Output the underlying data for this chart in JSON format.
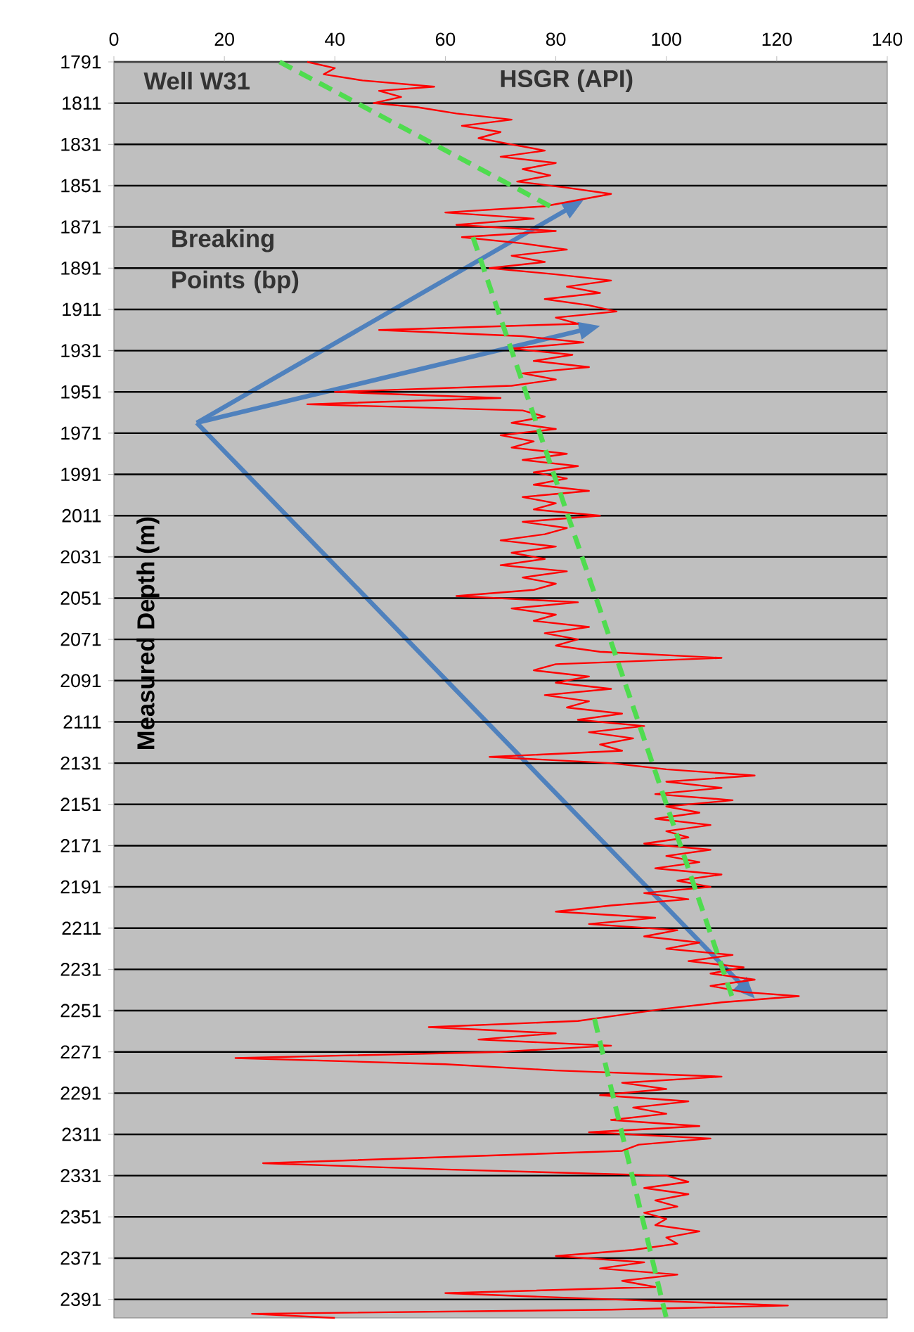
{
  "chart_data": {
    "type": "line",
    "xlabel": "HSGR  (API)",
    "ylabel": "Measured Depth (m)",
    "annotations": [
      "Well W31",
      "Breaking Points (bp)"
    ],
    "xlim": [
      0,
      140
    ],
    "xticks": [
      0,
      20,
      40,
      60,
      80,
      100,
      120,
      140
    ],
    "ylim": [
      2400,
      1791
    ],
    "yticks": [
      1791,
      1811,
      1831,
      1851,
      1871,
      1891,
      1911,
      1931,
      1951,
      1971,
      1991,
      2011,
      2031,
      2051,
      2071,
      2091,
      2111,
      2131,
      2151,
      2171,
      2191,
      2211,
      2231,
      2251,
      2271,
      2291,
      2311,
      2331,
      2351,
      2371,
      2391
    ],
    "grid": "y",
    "line_style": "solid",
    "series": [
      {
        "color": "#ff0000",
        "x": [
          35,
          40,
          38,
          45,
          58,
          48,
          52,
          47,
          55,
          62,
          72,
          63,
          70,
          66,
          72,
          78,
          70,
          80,
          74,
          79,
          73,
          82,
          90,
          84,
          78,
          60,
          76,
          62,
          80,
          63,
          74,
          82,
          72,
          78,
          68,
          80,
          90,
          82,
          88,
          78,
          86,
          91,
          80,
          84,
          48,
          74,
          85,
          72,
          83,
          76,
          86,
          74,
          80,
          72,
          40,
          70,
          35,
          74,
          78,
          72,
          80,
          70,
          76,
          72,
          82,
          74,
          84,
          76,
          82,
          76,
          86,
          74,
          80,
          76,
          88,
          74,
          82,
          78,
          70,
          80,
          72,
          78,
          70,
          82,
          74,
          80,
          76,
          62,
          84,
          72,
          80,
          76,
          86,
          78,
          84,
          80,
          88,
          110,
          80,
          76,
          86,
          80,
          90,
          78,
          86,
          82,
          92,
          84,
          96,
          86,
          94,
          88,
          92,
          68,
          90,
          100,
          116,
          100,
          110,
          98,
          112,
          100,
          106,
          98,
          108,
          100,
          104,
          96,
          108,
          100,
          106,
          98,
          110,
          102,
          108,
          96,
          104,
          90,
          80,
          98,
          86,
          102,
          96,
          106,
          100,
          112,
          104,
          114,
          108,
          116,
          108,
          114,
          124,
          110,
          100,
          92,
          84,
          57,
          80,
          66,
          90,
          70,
          22,
          60,
          80,
          110,
          92,
          100,
          88,
          104,
          94,
          100,
          90,
          106,
          86,
          108,
          95,
          92,
          60,
          27,
          60,
          100,
          104,
          96,
          104,
          98,
          102,
          96,
          100,
          98,
          106,
          100,
          102,
          94,
          80,
          96,
          88,
          102,
          92,
          98,
          60,
          90,
          122,
          90,
          25,
          40
        ],
        "values": [
          1791,
          1794,
          1797,
          1800,
          1803,
          1805,
          1808,
          1811,
          1813,
          1816,
          1819,
          1822,
          1825,
          1828,
          1831,
          1834,
          1837,
          1840,
          1843,
          1846,
          1849,
          1852,
          1855,
          1858,
          1861,
          1864,
          1867,
          1870,
          1873,
          1876,
          1879,
          1882,
          1885,
          1888,
          1891,
          1894,
          1897,
          1900,
          1903,
          1906,
          1909,
          1912,
          1915,
          1918,
          1921,
          1924,
          1927,
          1930,
          1933,
          1936,
          1939,
          1942,
          1945,
          1948,
          1951,
          1954,
          1957,
          1960,
          1963,
          1966,
          1969,
          1972,
          1975,
          1978,
          1981,
          1984,
          1987,
          1990,
          1993,
          1996,
          1999,
          2002,
          2005,
          2008,
          2011,
          2014,
          2017,
          2020,
          2023,
          2026,
          2029,
          2032,
          2035,
          2038,
          2041,
          2044,
          2047,
          2050,
          2053,
          2056,
          2059,
          2062,
          2065,
          2068,
          2071,
          2074,
          2077,
          2080,
          2083,
          2086,
          2089,
          2092,
          2095,
          2098,
          2101,
          2104,
          2107,
          2110,
          2113,
          2116,
          2119,
          2122,
          2125,
          2128,
          2131,
          2134,
          2137,
          2140,
          2143,
          2146,
          2149,
          2152,
          2155,
          2158,
          2161,
          2164,
          2167,
          2170,
          2173,
          2176,
          2179,
          2182,
          2185,
          2188,
          2191,
          2194,
          2197,
          2200,
          2203,
          2206,
          2209,
          2212,
          2215,
          2218,
          2221,
          2224,
          2227,
          2230,
          2233,
          2236,
          2239,
          2242,
          2244,
          2247,
          2250,
          2253,
          2256,
          2259,
          2262,
          2265,
          2268,
          2271,
          2274,
          2277,
          2280,
          2283,
          2286,
          2289,
          2292,
          2295,
          2298,
          2301,
          2304,
          2307,
          2310,
          2313,
          2316,
          2319,
          2322,
          2325,
          2328,
          2331,
          2334,
          2337,
          2340,
          2343,
          2346,
          2349,
          2352,
          2355,
          2358,
          2361,
          2364,
          2367,
          2370,
          2373,
          2376,
          2379,
          2382,
          2385,
          2388,
          2391,
          2394,
          2396,
          2398,
          2400
        ]
      },
      {
        "color": "#4fdc4f",
        "line_style": "dashed",
        "x": [
          30,
          79
        ],
        "values": [
          1791,
          1861
        ]
      },
      {
        "color": "#4fdc4f",
        "line_style": "dashed",
        "x": [
          65,
          112
        ],
        "values": [
          1876,
          2245
        ]
      },
      {
        "color": "#4fdc4f",
        "line_style": "dashed",
        "x": [
          87,
          100
        ],
        "values": [
          2255,
          2400
        ]
      }
    ]
  }
}
